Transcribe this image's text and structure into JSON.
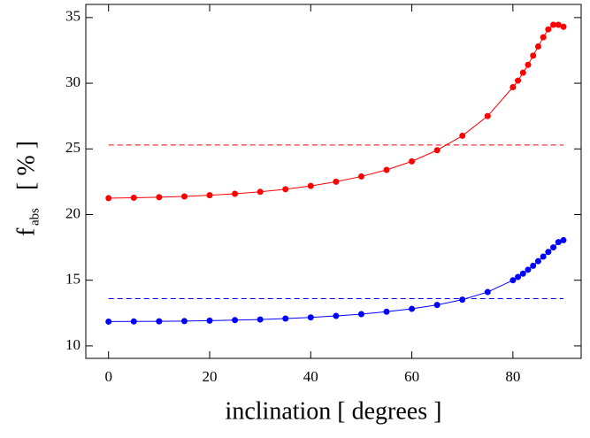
{
  "chart_data": {
    "type": "line",
    "xlabel": "inclination [ degrees ]",
    "ylabel": "f",
    "ylabel_sub": "abs",
    "ylabel_unit": "[ % ]",
    "x": [
      0,
      5,
      10,
      15,
      20,
      25,
      30,
      35,
      40,
      45,
      50,
      55,
      60,
      65,
      70,
      75,
      80,
      81,
      82,
      83,
      84,
      85,
      86,
      87,
      88,
      89,
      90
    ],
    "series": [
      {
        "color": "#ff0000",
        "values": [
          21.25,
          21.28,
          21.32,
          21.38,
          21.47,
          21.58,
          21.73,
          21.93,
          22.18,
          22.5,
          22.9,
          23.4,
          24.05,
          24.9,
          26.0,
          27.5,
          29.7,
          30.2,
          30.8,
          31.4,
          32.1,
          32.8,
          33.5,
          34.1,
          34.45,
          34.45,
          34.3
        ]
      },
      {
        "color": "#0000ff",
        "values": [
          11.85,
          11.86,
          11.87,
          11.89,
          11.92,
          11.96,
          12.01,
          12.08,
          12.17,
          12.28,
          12.42,
          12.6,
          12.82,
          13.12,
          13.52,
          14.1,
          15.0,
          15.25,
          15.5,
          15.8,
          16.1,
          16.45,
          16.8,
          17.15,
          17.5,
          17.9,
          18.05
        ]
      }
    ],
    "reference_lines": [
      {
        "value": 25.3,
        "color": "#ff0000"
      },
      {
        "value": 13.6,
        "color": "#0000ff"
      }
    ],
    "xlim": [
      -4.5,
      93.5
    ],
    "ylim": [
      9.05,
      36
    ],
    "xticks": [
      0,
      20,
      40,
      60,
      80
    ],
    "yticks": [
      10,
      15,
      20,
      25,
      30,
      35
    ]
  }
}
